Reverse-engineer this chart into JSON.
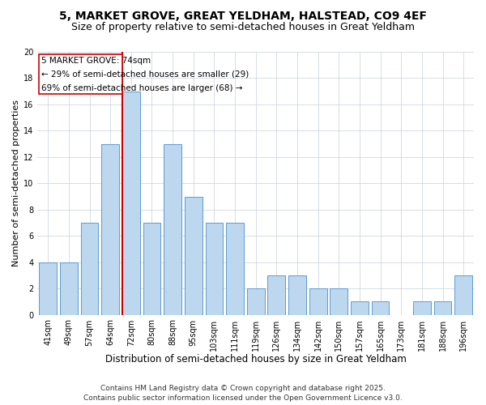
{
  "title": "5, MARKET GROVE, GREAT YELDHAM, HALSTEAD, CO9 4EF",
  "subtitle": "Size of property relative to semi-detached houses in Great Yeldham",
  "xlabel": "Distribution of semi-detached houses by size in Great Yeldham",
  "ylabel": "Number of semi-detached properties",
  "categories": [
    "41sqm",
    "49sqm",
    "57sqm",
    "64sqm",
    "72sqm",
    "80sqm",
    "88sqm",
    "95sqm",
    "103sqm",
    "111sqm",
    "119sqm",
    "126sqm",
    "134sqm",
    "142sqm",
    "150sqm",
    "157sqm",
    "165sqm",
    "173sqm",
    "181sqm",
    "188sqm",
    "196sqm"
  ],
  "values": [
    4,
    4,
    7,
    13,
    17,
    7,
    13,
    9,
    7,
    7,
    2,
    3,
    3,
    2,
    2,
    1,
    1,
    0,
    1,
    1,
    3
  ],
  "bar_color": "#bdd7ee",
  "bar_edge_color": "#5b9bd5",
  "marker_index": 4,
  "marker_label": "5 MARKET GROVE: 74sqm",
  "marker_line_color": "#cc0000",
  "annotation_line1": "← 29% of semi-detached houses are smaller (29)",
  "annotation_line2": "69% of semi-detached houses are larger (68) →",
  "box_edge_color": "#cc0000",
  "ylim": [
    0,
    20
  ],
  "yticks": [
    0,
    2,
    4,
    6,
    8,
    10,
    12,
    14,
    16,
    18,
    20
  ],
  "footer": "Contains HM Land Registry data © Crown copyright and database right 2025.\nContains public sector information licensed under the Open Government Licence v3.0.",
  "bg_color": "#ffffff",
  "grid_color": "#d0d8e0",
  "title_fontsize": 10,
  "subtitle_fontsize": 9,
  "xlabel_fontsize": 8.5,
  "ylabel_fontsize": 8,
  "tick_fontsize": 7,
  "annot_fontsize": 7.5,
  "footer_fontsize": 6.5
}
